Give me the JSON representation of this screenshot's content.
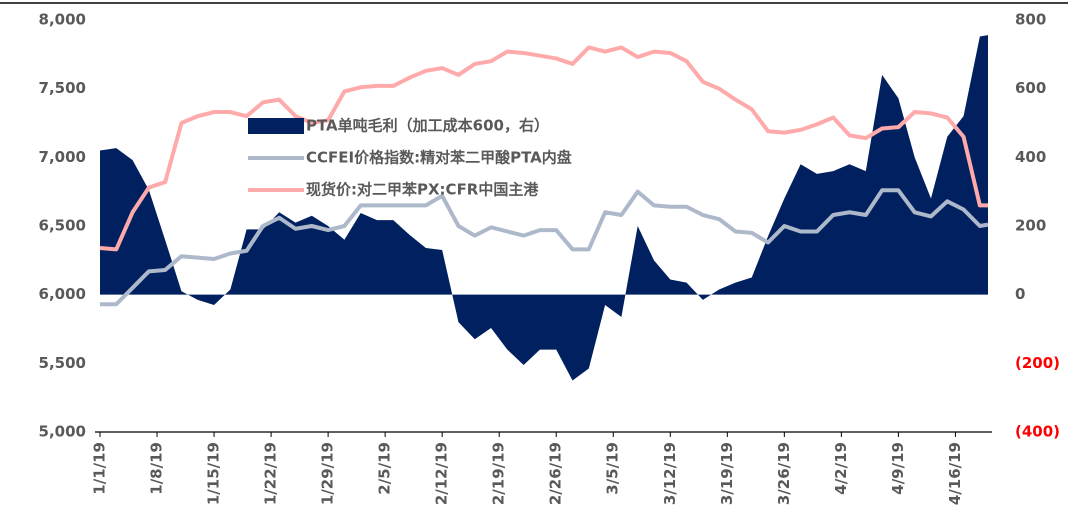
{
  "chart_data": {
    "type": "area_line",
    "x": [
      0,
      2,
      4,
      6,
      8,
      10,
      12,
      14,
      16,
      18,
      20,
      22,
      24,
      26,
      28,
      30,
      32,
      34,
      36,
      38,
      40,
      42,
      44,
      46,
      48,
      50,
      52,
      54,
      56,
      58,
      60,
      62,
      64,
      66,
      68,
      70,
      72,
      74,
      76,
      78,
      80,
      82,
      84,
      86,
      88,
      90,
      92,
      94,
      96,
      98,
      100,
      102,
      104,
      106,
      108,
      109
    ],
    "xlim": [
      0,
      109
    ],
    "xticks": [
      {
        "value": 0,
        "label": "1/1/19"
      },
      {
        "value": 7,
        "label": "1/8/19"
      },
      {
        "value": 14,
        "label": "1/15/19"
      },
      {
        "value": 21,
        "label": "1/22/19"
      },
      {
        "value": 28,
        "label": "1/29/19"
      },
      {
        "value": 35,
        "label": "2/5/19"
      },
      {
        "value": 42,
        "label": "2/12/19"
      },
      {
        "value": 49,
        "label": "2/19/19"
      },
      {
        "value": 56,
        "label": "2/26/19"
      },
      {
        "value": 63,
        "label": "3/5/19"
      },
      {
        "value": 70,
        "label": "3/12/19"
      },
      {
        "value": 77,
        "label": "3/19/19"
      },
      {
        "value": 84,
        "label": "3/26/19"
      },
      {
        "value": 91,
        "label": "4/2/19"
      },
      {
        "value": 98,
        "label": "4/9/19"
      },
      {
        "value": 105,
        "label": "4/16/19"
      }
    ],
    "ylim": [
      5000,
      8000
    ],
    "yticks": [
      {
        "value": 5000,
        "label": "5,000"
      },
      {
        "value": 5500,
        "label": "5,500"
      },
      {
        "value": 6000,
        "label": "6,000"
      },
      {
        "value": 6500,
        "label": "6,500"
      },
      {
        "value": 7000,
        "label": "7,000"
      },
      {
        "value": 7500,
        "label": "7,500"
      },
      {
        "value": 8000,
        "label": "8,000"
      }
    ],
    "y2lim": [
      -400,
      800
    ],
    "y2ticks": [
      {
        "value": -400,
        "label": "(400)"
      },
      {
        "value": -200,
        "label": "(200)"
      },
      0,
      200,
      400,
      600,
      800
    ],
    "negative_tick_color": "#ff0000",
    "legend": "upper-left",
    "series": [
      {
        "name": "PTA单吨毛利（加工成本600，右）",
        "color": "#002060",
        "kind": "area",
        "axis": "y2",
        "values": [
          420,
          427,
          392,
          305,
          159,
          10,
          -15,
          -30,
          15,
          190,
          190,
          240,
          210,
          230,
          200,
          160,
          238,
          217,
          217,
          174,
          136,
          130,
          -80,
          -130,
          -97,
          -160,
          -205,
          -160,
          -160,
          -250,
          -215,
          -30,
          -65,
          200,
          100,
          44,
          35,
          -15,
          15,
          35,
          50,
          170,
          280,
          380,
          352,
          360,
          380,
          360,
          640,
          572,
          400,
          280,
          460,
          520,
          752,
          756
        ]
      },
      {
        "name": "CCFEI价格指数:精对苯二甲酸PTA内盘",
        "color": "#adb9ca",
        "kind": "line",
        "values": [
          5930,
          5930,
          6050,
          6170,
          6180,
          6280,
          6270,
          6260,
          6300,
          6320,
          6500,
          6560,
          6480,
          6500,
          6470,
          6500,
          6650,
          6650,
          6650,
          6650,
          6650,
          6720,
          6500,
          6430,
          6490,
          6460,
          6430,
          6470,
          6470,
          6330,
          6330,
          6600,
          6580,
          6750,
          6650,
          6640,
          6640,
          6580,
          6550,
          6460,
          6450,
          6380,
          6500,
          6460,
          6460,
          6580,
          6600,
          6580,
          6760,
          6760,
          6600,
          6570,
          6680,
          6620,
          6500,
          6510
        ]
      },
      {
        "name": "现货价:对二甲苯PX:CFR中国主港",
        "color": "#ffaaaa",
        "kind": "line",
        "values": [
          6340,
          6330,
          6600,
          6780,
          6820,
          7250,
          7300,
          7330,
          7330,
          7300,
          7400,
          7420,
          7300,
          7250,
          7270,
          7480,
          7510,
          7520,
          7520,
          7580,
          7630,
          7650,
          7600,
          7680,
          7700,
          7770,
          7760,
          7740,
          7720,
          7680,
          7800,
          7770,
          7800,
          7730,
          7770,
          7760,
          7700,
          7550,
          7500,
          7420,
          7350,
          7190,
          7180,
          7200,
          7240,
          7290,
          7160,
          7140,
          7210,
          7220,
          7330,
          7320,
          7290,
          7150,
          6650,
          6650
        ]
      }
    ]
  }
}
